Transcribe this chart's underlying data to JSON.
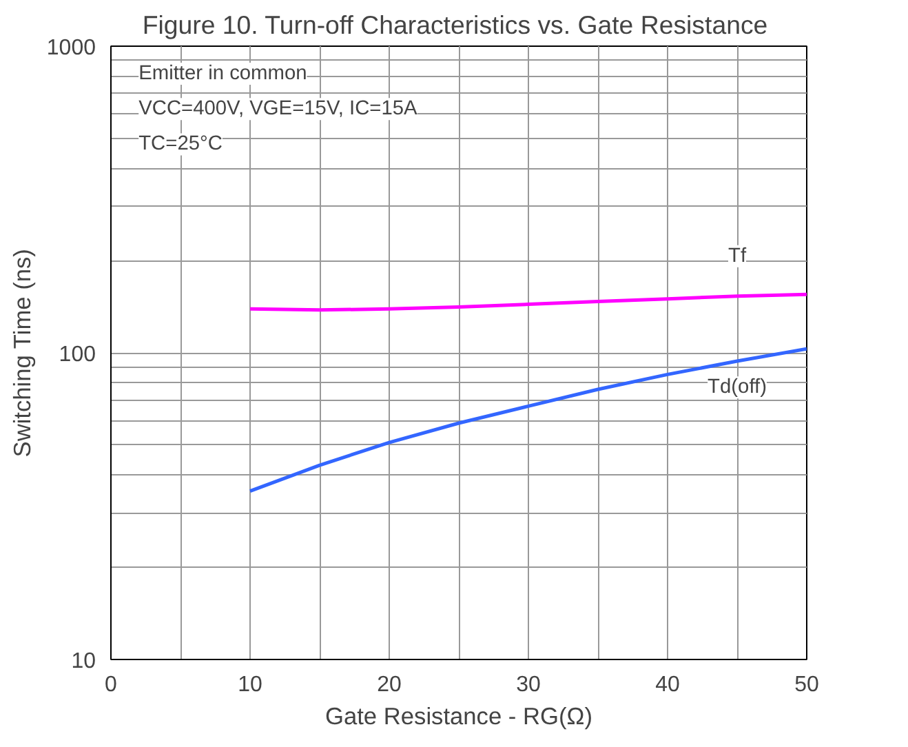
{
  "chart_data": {
    "type": "line",
    "title": "Figure 10. Turn-off Characteristics  vs. Gate Resistance",
    "xlabel": "Gate Resistance - RG(Ω)",
    "ylabel": "Switching Time (ns)",
    "log": "y",
    "grid": true,
    "marker": "none",
    "line_style": "solid",
    "xlim": [
      0,
      50
    ],
    "ylim": [
      10,
      1000
    ],
    "xticks": [
      0,
      {
        "value": 5,
        "label": null
      },
      10,
      {
        "value": 15,
        "label": null
      },
      20,
      {
        "value": 25,
        "label": null
      },
      30,
      {
        "value": 35,
        "label": null
      },
      40,
      {
        "value": 45,
        "label": null
      },
      50
    ],
    "yticks": [
      10,
      {
        "value": 20,
        "label": null
      },
      {
        "value": 30,
        "label": null
      },
      {
        "value": 40,
        "label": null
      },
      {
        "value": 50,
        "label": null
      },
      {
        "value": 60,
        "label": null
      },
      {
        "value": 70,
        "label": null
      },
      {
        "value": 80,
        "label": null
      },
      {
        "value": 90,
        "label": null
      },
      100,
      {
        "value": 200,
        "label": null
      },
      {
        "value": 300,
        "label": null
      },
      {
        "value": 400,
        "label": null
      },
      {
        "value": 500,
        "label": null
      },
      {
        "value": 600,
        "label": null
      },
      {
        "value": 700,
        "label": null
      },
      {
        "value": 800,
        "label": null
      },
      {
        "value": 900,
        "label": null
      },
      1000
    ],
    "x": [
      10,
      15,
      20,
      25,
      30,
      35,
      40,
      45,
      50
    ],
    "series": [
      {
        "name": "Tf",
        "color": "#ff00ff",
        "values": [
          139,
          138,
          139,
          141,
          144,
          147,
          150,
          153,
          155
        ]
      },
      {
        "name": "Td(off)",
        "color": "#3366ff",
        "values": [
          35.4,
          43,
          51,
          59,
          67,
          76,
          85,
          94,
          103
        ]
      }
    ],
    "annotations": [
      "Emitter in common",
      "VCC=400V, VGE=15V, IC=15A",
      "TC=25°C"
    ]
  }
}
